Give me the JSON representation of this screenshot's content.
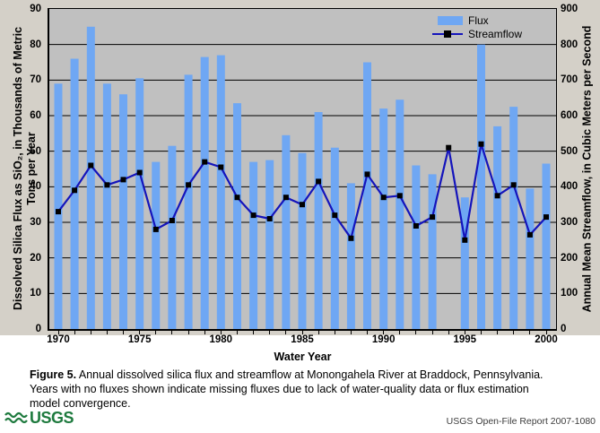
{
  "chart_data": {
    "type": "bar",
    "subtype": "bar+line combo",
    "title": "",
    "x_label": "Water Year",
    "x_ticks": [
      1970,
      1975,
      1980,
      1985,
      1990,
      1995,
      2000
    ],
    "years": [
      1970,
      1971,
      1972,
      1973,
      1974,
      1975,
      1976,
      1977,
      1978,
      1979,
      1980,
      1981,
      1982,
      1983,
      1984,
      1985,
      1986,
      1987,
      1988,
      1989,
      1990,
      1991,
      1992,
      1993,
      1994,
      1995,
      1996,
      1997,
      1998,
      1999,
      2000
    ],
    "left_axis": {
      "label_lines": [
        "Dissolved Silica Flux as SiO₂, in Thousands of Metric",
        "Tons per Year"
      ],
      "min": 0,
      "max": 90,
      "ticks": [
        0,
        10,
        20,
        30,
        40,
        50,
        60,
        70,
        80,
        90
      ]
    },
    "right_axis": {
      "label": "Annual Mean Streamflow, in Cubic Meters per Second",
      "min": 0,
      "max": 900,
      "ticks": [
        0,
        100,
        200,
        300,
        400,
        500,
        600,
        700,
        800,
        900
      ]
    },
    "grid": "horizontal-black-lines",
    "legend_position": "top-right-inside",
    "missing_flux_years": [
      1994
    ],
    "series": [
      {
        "name": "Flux",
        "type": "bar",
        "axis": "left",
        "color": "#6fa7f3",
        "values": [
          69,
          76,
          85,
          69,
          66,
          70.5,
          47,
          51.5,
          71.5,
          76.5,
          77,
          63.5,
          47,
          47.5,
          54.5,
          49.5,
          61,
          51,
          41,
          75,
          62,
          64.5,
          46,
          43.5,
          null,
          37,
          80,
          57,
          62.5,
          39.5,
          46.5
        ]
      },
      {
        "name": "Streamflow",
        "type": "line",
        "axis": "right",
        "color": "#1414bc",
        "marker": "black-square",
        "marker_color": "#000000",
        "values": [
          330,
          390,
          460,
          405,
          420,
          440,
          280,
          305,
          405,
          470,
          455,
          370,
          320,
          310,
          370,
          350,
          415,
          320,
          255,
          435,
          370,
          375,
          290,
          315,
          510,
          250,
          520,
          375,
          405,
          265,
          315
        ]
      }
    ]
  },
  "legend": {
    "flux_label": "Flux",
    "streamflow_label": "Streamflow"
  },
  "caption": {
    "label": "Figure 5.",
    "text": " Annual dissolved silica flux and streamflow at Monongahela River at Braddock, Pennsylvania. Years with no fluxes shown indicate missing fluxes due to lack of water-quality data or flux estimation model convergence."
  },
  "footer": {
    "logo_text": "USGS",
    "report": "USGS Open-File Report 2007-1080"
  },
  "colors": {
    "panel_bg": "#d4d0c8",
    "plot_bg": "#c0c0c0",
    "bar": "#6fa7f3",
    "line": "#1414bc",
    "marker": "#000000",
    "usgs_green": "#1e7a3e"
  }
}
